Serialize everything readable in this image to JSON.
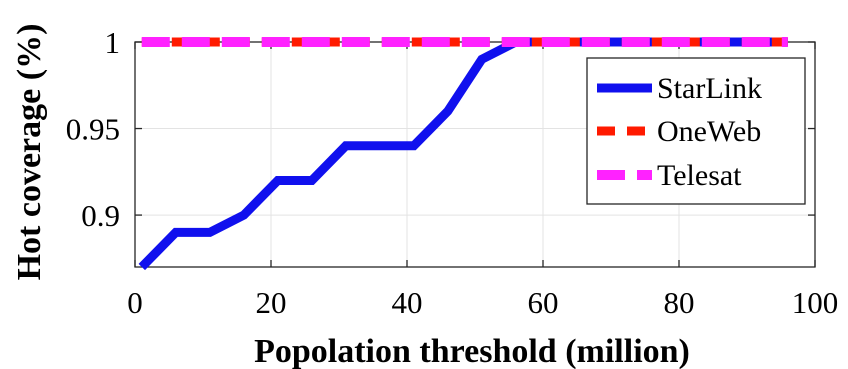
{
  "chart_data": {
    "type": "line",
    "xlabel": "Popolation threshold (million)",
    "ylabel": "Hot coverage (%)",
    "xlim": [
      0,
      100
    ],
    "ylim": [
      0.87,
      1.0
    ],
    "xticks": [
      0,
      20,
      40,
      60,
      80,
      100
    ],
    "xtick_labels": [
      "0",
      "20",
      "40",
      "60",
      "80",
      "100"
    ],
    "yticks": [
      0.9,
      0.95,
      1.0
    ],
    "ytick_labels": [
      "0.9",
      "0.95",
      "1"
    ],
    "grid": true,
    "legend_position": "top-right",
    "series": [
      {
        "name": "StarLink",
        "color": "#1010ee",
        "style": "solid",
        "x": [
          1,
          6,
          11,
          16,
          21,
          26,
          31,
          36,
          41,
          46,
          51,
          56,
          61,
          66,
          71,
          76,
          81,
          86,
          91,
          96
        ],
        "y": [
          0.87,
          0.89,
          0.89,
          0.9,
          0.92,
          0.92,
          0.94,
          0.94,
          0.94,
          0.96,
          0.99,
          1.0,
          1.0,
          1.0,
          1.0,
          1.0,
          1.0,
          1.0,
          1.0,
          1.0
        ]
      },
      {
        "name": "OneWeb",
        "color": "#ff1a00",
        "style": "dashed",
        "x": [
          1,
          96
        ],
        "y": [
          1.0,
          1.0
        ]
      },
      {
        "name": "Telesat",
        "color": "#ff22ff",
        "style": "long-dashed",
        "x": [
          1,
          96
        ],
        "y": [
          1.0,
          1.0
        ]
      }
    ]
  }
}
